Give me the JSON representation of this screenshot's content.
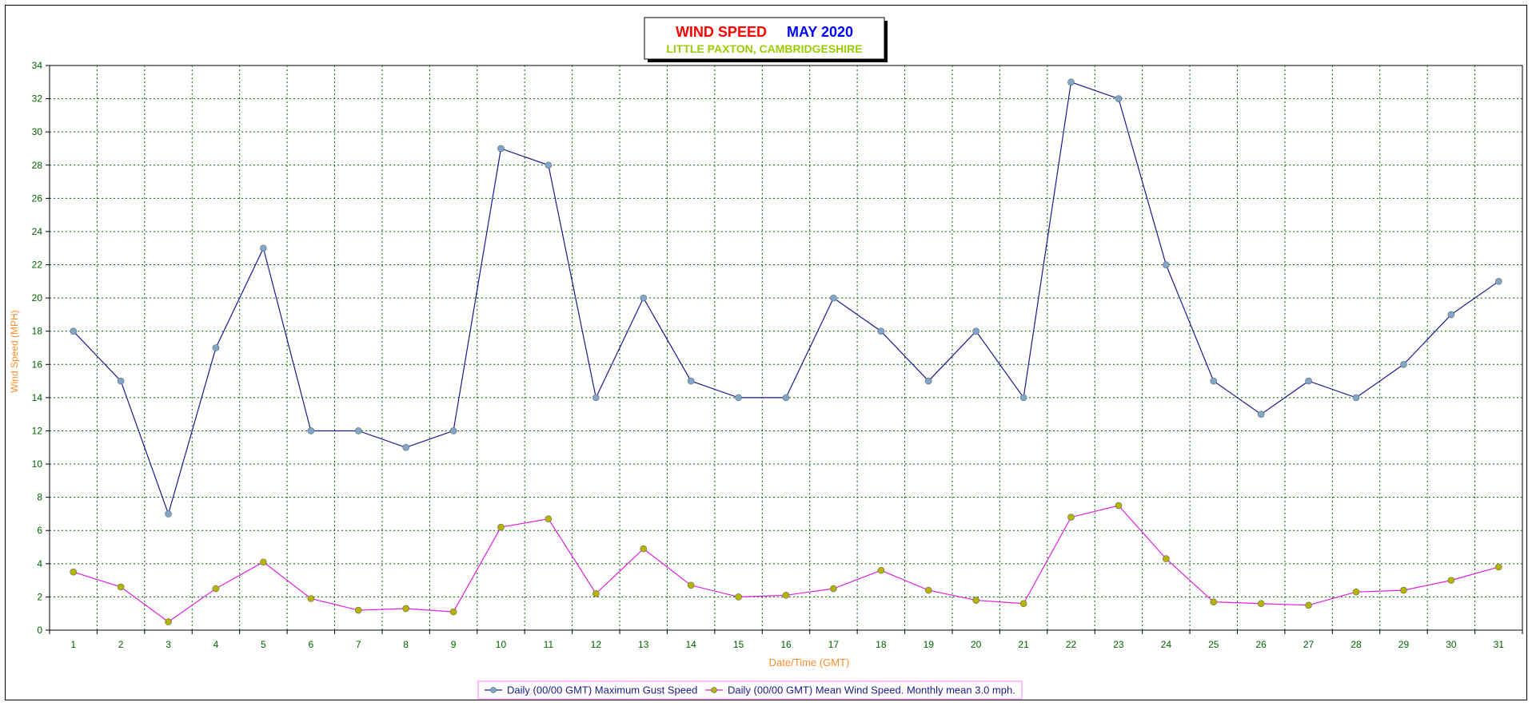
{
  "chart_data": {
    "type": "line",
    "title": {
      "part1": "WIND SPEED",
      "part2": "MAY 2020",
      "subtitle": "LITTLE PAXTON, CAMBRIDGESHIRE"
    },
    "xlabel": "Date/Time (GMT)",
    "ylabel": "Wind Speed (MPH)",
    "ylim": [
      0,
      34
    ],
    "yticks": [
      0,
      2,
      4,
      6,
      8,
      10,
      12,
      14,
      16,
      18,
      20,
      22,
      24,
      26,
      28,
      30,
      32,
      34
    ],
    "x": [
      1,
      2,
      3,
      4,
      5,
      6,
      7,
      8,
      9,
      10,
      11,
      12,
      13,
      14,
      15,
      16,
      17,
      18,
      19,
      20,
      21,
      22,
      23,
      24,
      25,
      26,
      27,
      28,
      29,
      30,
      31
    ],
    "grid": true,
    "legend_position": "bottom",
    "series": [
      {
        "name": "Daily (00/00 GMT) Maximum Gust Speed",
        "color": "#1a1a8c",
        "marker_color": "#7fa7c9",
        "values": [
          18,
          15,
          7,
          17,
          23,
          12,
          12,
          11,
          12,
          29,
          28,
          14,
          20,
          15,
          14,
          14,
          20,
          18,
          15,
          18,
          14,
          33,
          32,
          22,
          15,
          13,
          15,
          14,
          16,
          19,
          21
        ]
      },
      {
        "name": "Daily (00/00 GMT) Mean Wind Speed. Monthly mean 3.0 mph.",
        "color": "#e020e0",
        "marker_color": "#b5b500",
        "values": [
          3.5,
          2.6,
          0.5,
          2.5,
          4.1,
          1.9,
          1.2,
          1.3,
          1.1,
          6.2,
          6.7,
          2.2,
          4.9,
          2.7,
          2.0,
          2.1,
          2.5,
          3.6,
          2.4,
          1.8,
          1.6,
          6.8,
          7.5,
          4.3,
          1.7,
          1.6,
          1.5,
          2.3,
          2.4,
          3.0,
          3.8
        ]
      }
    ]
  },
  "colors": {
    "title_part1": "#ff0000",
    "title_part2": "#0000ff",
    "subtitle": "#9acd00",
    "axis_label": "#ff8c2a",
    "tick_label": "#006400",
    "grid": "#006400",
    "legend_text": "#1a1a8c",
    "legend_border": "#ff7fff"
  }
}
